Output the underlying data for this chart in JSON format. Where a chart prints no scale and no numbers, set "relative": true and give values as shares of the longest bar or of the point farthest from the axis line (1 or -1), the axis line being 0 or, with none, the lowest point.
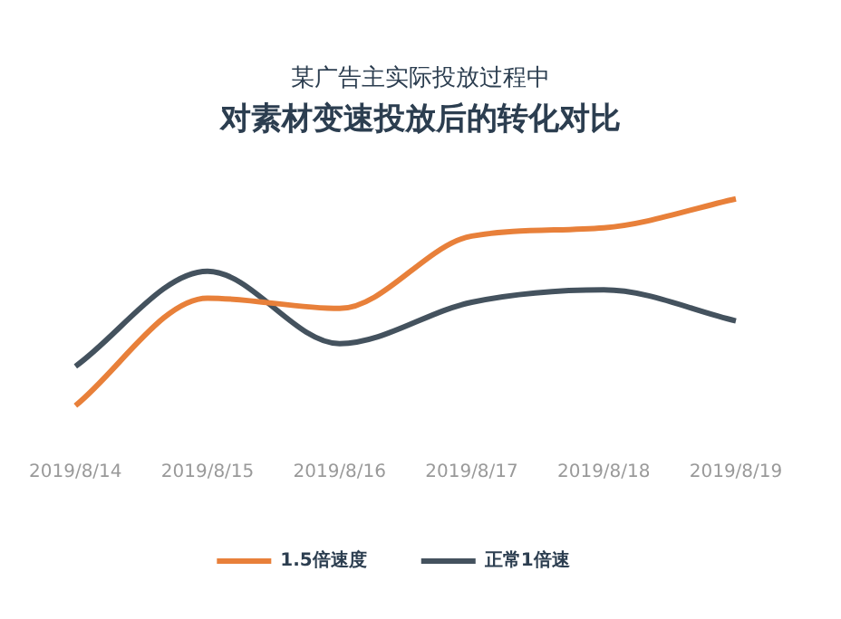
{
  "chart_data": {
    "type": "line",
    "title": "对素材变速投放后的转化对比",
    "subtitle": "某广告主实际投放过程中",
    "categories": [
      "2019/8/14",
      "2019/8/15",
      "2019/8/16",
      "2019/8/17",
      "2019/8/18",
      "2019/8/19"
    ],
    "relative": true,
    "legend": "bottom",
    "grid": false,
    "marker": "none",
    "line_style": "solid",
    "series": [
      {
        "name": "1.5倍速度",
        "color": "#e8803a",
        "values": [
          0,
          0.52,
          0.47,
          0.82,
          0.86,
          1
        ]
      },
      {
        "name": "正常1倍速",
        "color": "#44525e",
        "values": [
          0.19,
          0.65,
          0.3,
          0.5,
          0.56,
          0.41
        ]
      }
    ]
  }
}
